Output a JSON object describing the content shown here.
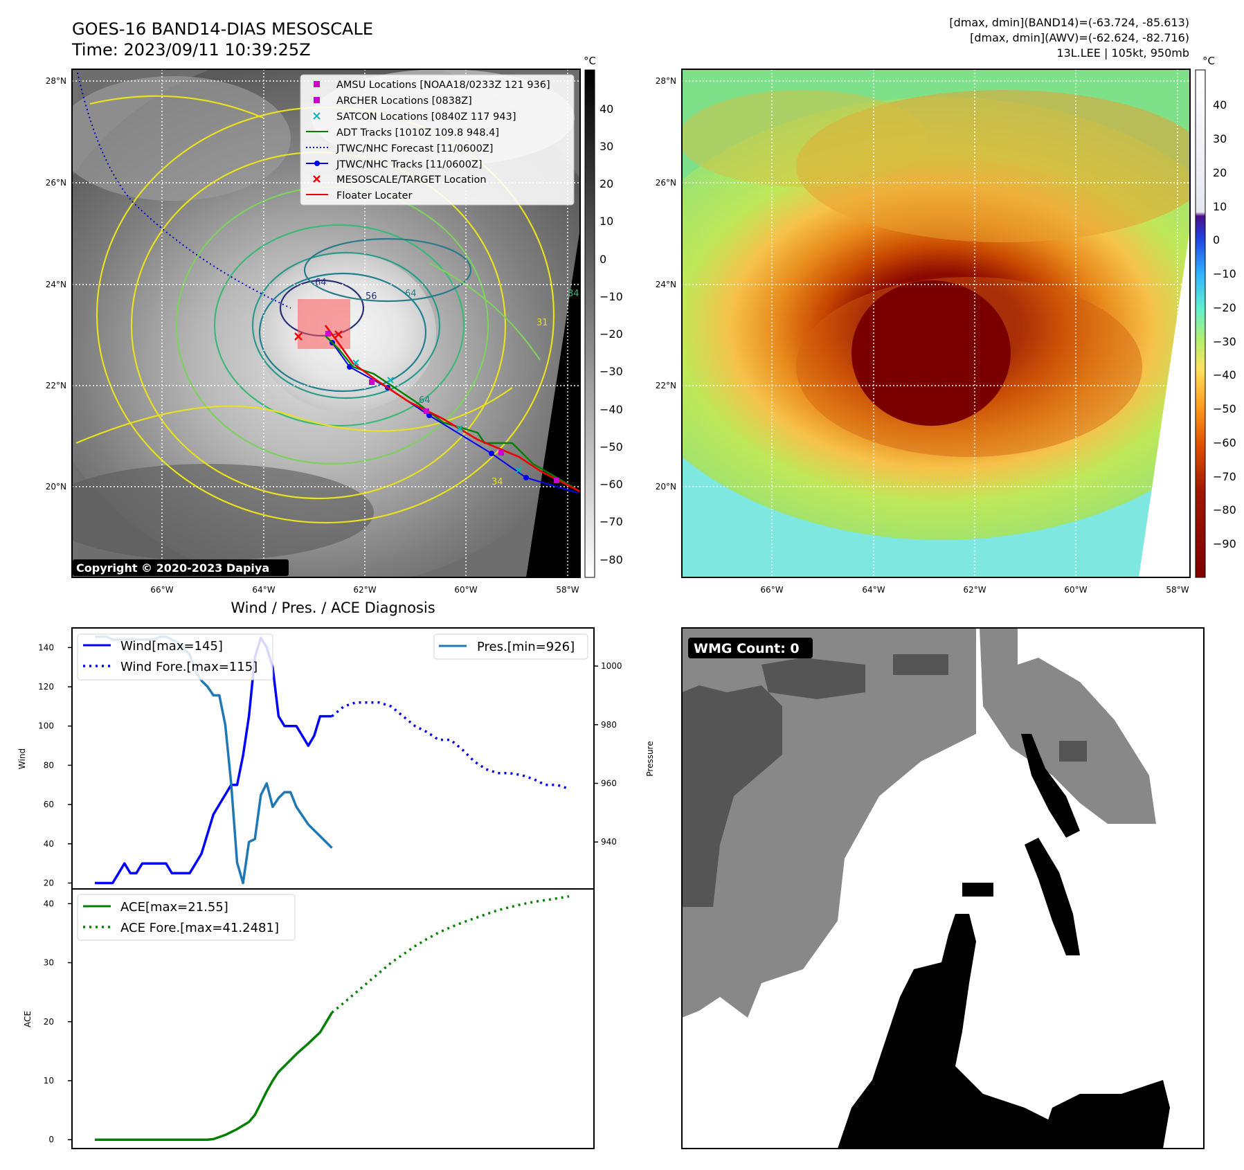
{
  "header": {
    "title_line1": "GOES-16 BAND14-DIAS MESOSCALE",
    "title_line2": "Time: 2023/09/11 10:39:25Z",
    "stats_line1": "[dmax, dmin](BAND14)=(-63.724, -85.613)",
    "stats_line2": "[dmax, dmin](AWV)=(-62.624, -82.716)",
    "stats_line3": "13L.LEE | 105kt, 950mb"
  },
  "map": {
    "lat_labels": [
      "28°N",
      "26°N",
      "24°N",
      "22°N",
      "20°N"
    ],
    "lon_labels": [
      "66°W",
      "64°W",
      "62°W",
      "60°W",
      "58°W"
    ],
    "copyright": "Copyright © 2020-2023 Dapiya",
    "legend": [
      {
        "label": "AMSU Locations [NOAA18/0233Z 121 936]",
        "marker": "square",
        "color": "#cc00cc"
      },
      {
        "label": "ARCHER Locations [0838Z]",
        "marker": "square",
        "color": "#cc00cc"
      },
      {
        "label": "SATCON Locations [0840Z 117 943]",
        "marker": "x",
        "color": "#00b8b8"
      },
      {
        "label": "ADT Tracks [1010Z 109.8 948.4]",
        "marker": "line",
        "color": "#008000"
      },
      {
        "label": "JTWC/NHC Forecast [11/0600Z]",
        "marker": "dotted",
        "color": "#0000cc"
      },
      {
        "label": "JTWC/NHC Tracks [11/0600Z]",
        "marker": "line-dot",
        "color": "#0000ee"
      },
      {
        "label": "MESOSCALE/TARGET Location",
        "marker": "x",
        "color": "#ee0000"
      },
      {
        "label": "Floater Locater",
        "marker": "line",
        "color": "#ee0000"
      }
    ],
    "contour_labels": [
      "64",
      "64",
      "34",
      "34",
      "56",
      "31",
      "64"
    ]
  },
  "colorbar_gray": {
    "unit": "°C",
    "ticks": [
      "40",
      "30",
      "20",
      "10",
      "0",
      "−10",
      "−20",
      "−30",
      "−40",
      "−50",
      "−60",
      "−70",
      "−80"
    ]
  },
  "colorbar_color": {
    "unit": "°C",
    "ticks": [
      "40",
      "30",
      "20",
      "10",
      "0",
      "−10",
      "−20",
      "−30",
      "−40",
      "−50",
      "−60",
      "−70",
      "−80",
      "−90"
    ]
  },
  "wmg": {
    "label": "WMG Count: 0"
  },
  "chart_data": [
    {
      "type": "line",
      "title": "Wind / Pres. / ACE Diagnosis",
      "ylabel": "Wind",
      "y2label": "Pressure",
      "ylim": [
        17,
        150
      ],
      "y2lim": [
        924,
        1013
      ],
      "yticks": [
        20,
        40,
        60,
        80,
        100,
        120,
        140
      ],
      "y2ticks": [
        940,
        960,
        980,
        1000
      ],
      "series": [
        {
          "name": "Wind[max=145]",
          "axis": "left",
          "color": "#0000ff",
          "style": "solid",
          "x": [
            0,
            1,
            2,
            3,
            4,
            5,
            6,
            7,
            8,
            9,
            10,
            11,
            12,
            13,
            14,
            15,
            16,
            17,
            18,
            19,
            20,
            21,
            22,
            23,
            24,
            25,
            26,
            27,
            28,
            29,
            30,
            31,
            32,
            33,
            34,
            35,
            36,
            37,
            38,
            39,
            40
          ],
          "values": [
            20,
            20,
            20,
            20,
            25,
            30,
            25,
            25,
            30,
            30,
            30,
            30,
            30,
            25,
            25,
            25,
            25,
            30,
            35,
            45,
            55,
            60,
            65,
            70,
            70,
            85,
            105,
            135,
            145,
            140,
            130,
            105,
            100,
            100,
            100,
            95,
            90,
            95,
            105,
            105,
            105
          ]
        },
        {
          "name": "Wind Fore.[max=115]",
          "axis": "left",
          "color": "#0000ff",
          "style": "dotted",
          "x": [
            40,
            42,
            44,
            46,
            48,
            50,
            52,
            54,
            56,
            58,
            60,
            62,
            64,
            66,
            68,
            70,
            72,
            74,
            76,
            78,
            80
          ],
          "values": [
            105,
            110,
            112,
            112,
            112,
            110,
            105,
            100,
            97,
            93,
            93,
            88,
            82,
            78,
            76,
            76,
            75,
            73,
            70,
            70,
            68
          ]
        },
        {
          "name": "Pres.[min=926]",
          "axis": "right",
          "color": "#1f77b4",
          "style": "solid",
          "x": [
            0,
            1,
            2,
            3,
            4,
            5,
            6,
            7,
            8,
            9,
            10,
            11,
            12,
            13,
            14,
            15,
            16,
            17,
            18,
            19,
            20,
            21,
            22,
            23,
            24,
            25,
            26,
            27,
            28,
            29,
            30,
            31,
            32,
            33,
            34,
            35,
            36,
            37,
            38,
            39,
            40
          ],
          "values": [
            1010,
            1010,
            1010,
            1009,
            1009,
            1009,
            1009,
            1009,
            1009,
            1009,
            1009,
            1010,
            1010,
            1009,
            1008,
            1006,
            1004,
            998,
            995,
            993,
            990,
            990,
            980,
            960,
            933,
            926,
            940,
            941,
            956,
            960,
            952,
            955,
            957,
            957,
            952,
            949,
            946,
            944,
            942,
            940,
            938
          ]
        }
      ]
    },
    {
      "type": "line",
      "ylabel": "ACE",
      "ylim": [
        -1.5,
        42.5
      ],
      "yticks": [
        0,
        10,
        20,
        30,
        40
      ],
      "series": [
        {
          "name": "ACE[max=21.55]",
          "color": "#008000",
          "style": "solid",
          "x": [
            0,
            5,
            10,
            15,
            19,
            20,
            22,
            24,
            26,
            27,
            28,
            29,
            30,
            31,
            32,
            34,
            36,
            38,
            40
          ],
          "values": [
            0,
            0,
            0,
            0,
            0,
            0.1,
            0.8,
            1.8,
            3,
            4.2,
            6.2,
            8.2,
            10,
            11.5,
            12.5,
            14.5,
            16.3,
            18.2,
            21.55
          ]
        },
        {
          "name": "ACE Fore.[max=41.2481]",
          "color": "#008000",
          "style": "dotted",
          "x": [
            40,
            42,
            44,
            46,
            48,
            50,
            52,
            54,
            56,
            58,
            60,
            62,
            64,
            66,
            68,
            70,
            72,
            74,
            76,
            78,
            80
          ],
          "values": [
            21.55,
            23.2,
            24.9,
            26.6,
            28.3,
            30,
            31.4,
            32.8,
            34,
            35.1,
            36,
            36.8,
            37.5,
            38.2,
            38.9,
            39.4,
            39.9,
            40.3,
            40.6,
            40.9,
            41.2481
          ]
        }
      ]
    }
  ]
}
